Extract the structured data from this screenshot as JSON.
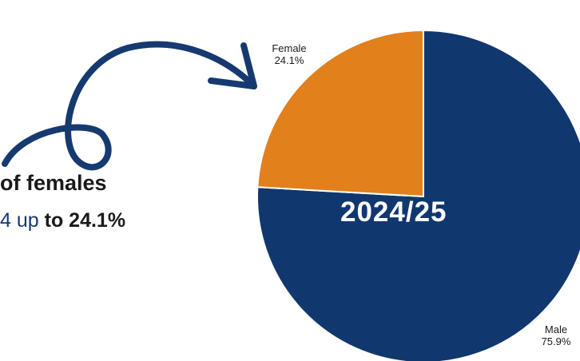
{
  "headline": {
    "text": "of females"
  },
  "subline": {
    "prefix": "4 up",
    "emphasis": "to 24.1%"
  },
  "center_label": "2024/25",
  "colors": {
    "male": "#11376f",
    "female": "#e2801c",
    "arrow": "#163a70",
    "text": "#1a1a1a"
  },
  "chart_data": {
    "type": "pie",
    "title": "",
    "categories": [
      "Male",
      "Female"
    ],
    "values": [
      75.9,
      24.1
    ],
    "labels": [
      {
        "name": "Male",
        "value_text": "75.9%"
      },
      {
        "name": "Female",
        "value_text": "24.1%"
      }
    ],
    "start_angle": "12 o'clock",
    "direction": "clockwise"
  }
}
